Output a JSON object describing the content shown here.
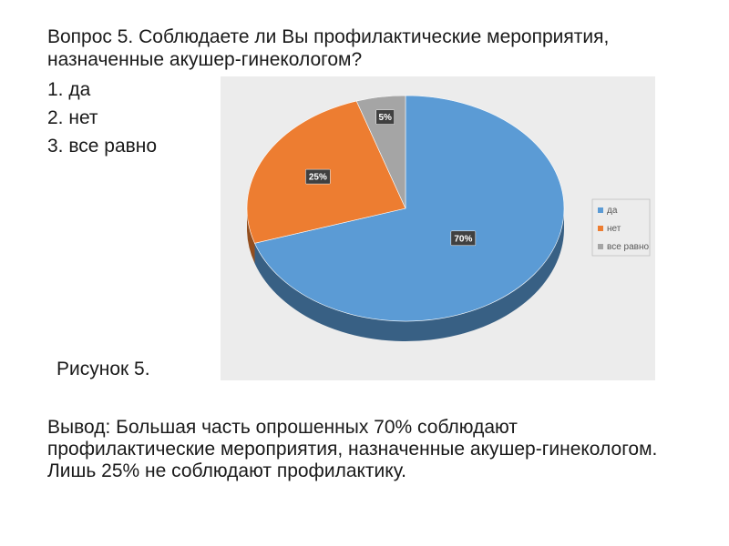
{
  "question": "Вопрос 5. Соблюдаете ли Вы профилактические мероприятия, назначенные акушер-гинекологом?",
  "options": [
    "1. да",
    "2. нет",
    "3. все равно"
  ],
  "caption": "Рисунок 5.",
  "conclusion": "Вывод: Большая часть опрошенных 70% соблюдают профилактические мероприятия, назначенные акушер-гинекологом. Лишь 25% не соблюдают профилактику.",
  "chart_data": {
    "type": "pie",
    "style": "3d",
    "title": "",
    "categories": [
      "да",
      "нет",
      "все равно"
    ],
    "values": [
      70,
      25,
      5
    ],
    "data_labels": [
      "70%",
      "25%",
      "5%"
    ],
    "colors": [
      "#5b9bd5",
      "#ed7d31",
      "#a5a5a5"
    ],
    "legend_position": "right"
  }
}
